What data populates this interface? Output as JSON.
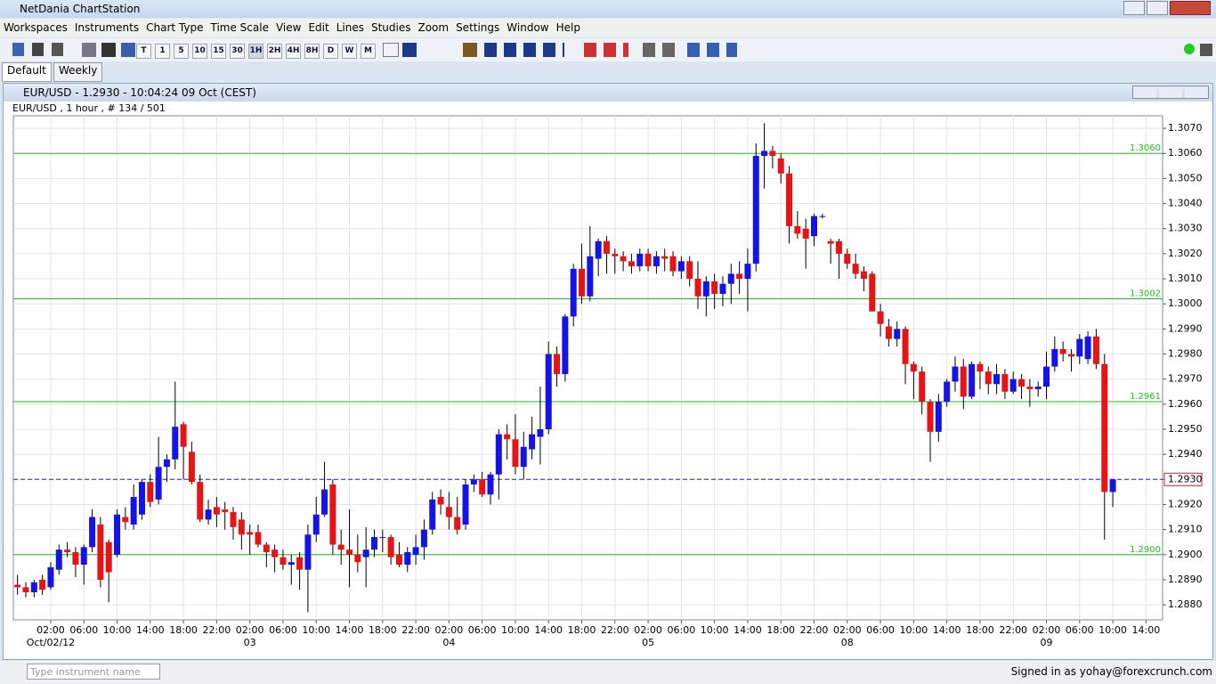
{
  "app": {
    "title": "NetDania ChartStation",
    "menu": [
      "Workspaces",
      "Instruments",
      "Chart Type",
      "Time Scale",
      "View",
      "Edit",
      "Lines",
      "Studies",
      "Zoom",
      "Settings",
      "Window",
      "Help"
    ],
    "timeframes": [
      "T",
      "1",
      "5",
      "10",
      "15",
      "30",
      "1H",
      "2H",
      "4H",
      "8H",
      "D",
      "W",
      "M"
    ],
    "tabs": [
      "Default",
      "Weekly"
    ]
  },
  "window": {
    "title": "EUR/USD - 1.2930 - 10:04:24  09 Oct (CEST)"
  },
  "chart_data": {
    "type": "candlestick",
    "subtitle": "EUR/USD , 1 hour , # 134 / 501",
    "up_color": "#1414e6",
    "down_color": "#e61414",
    "grid": true,
    "open": [
      1.2888,
      1.2887,
      1.2885,
      1.289,
      1.2887,
      1.2894,
      1.2902,
      1.2901,
      1.2896,
      1.2903,
      1.2912,
      1.2905,
      1.29,
      1.2915,
      1.2912,
      1.2916,
      1.2929,
      1.2922,
      1.2935,
      1.2938,
      1.2952,
      1.2941,
      1.2929,
      1.2914,
      1.2919,
      1.2918,
      1.2917,
      1.2914,
      1.2909,
      1.2909,
      1.2904,
      1.2902,
      1.2899,
      1.2896,
      1.2899,
      1.2894,
      1.2908,
      1.2916,
      1.2928,
      1.2904,
      1.2902,
      1.29,
      1.2899,
      1.2902,
      1.2907,
      1.2907,
      1.29,
      1.2896,
      1.29,
      1.2903,
      1.291,
      1.2923,
      1.2919,
      1.2915,
      1.2912,
      1.2928,
      1.293,
      1.2924,
      1.2932,
      1.2948,
      1.2946,
      1.2935,
      1.2942,
      1.2947,
      1.295,
      1.298,
      1.2972,
      1.2995,
      1.3014,
      1.3003,
      1.3018,
      1.3025,
      1.302,
      1.3019,
      1.3017,
      1.3015,
      1.302,
      1.3015,
      1.3019,
      1.3019,
      1.3013,
      1.3017,
      1.301,
      1.3003,
      1.3009,
      1.3004,
      1.3008,
      1.3012,
      1.301,
      1.3016,
      1.3059,
      1.3061,
      1.3058,
      1.3052,
      1.3031,
      1.303,
      1.3027,
      1.3035,
      1.3025,
      1.3025,
      1.302,
      1.3016,
      1.3013,
      1.3012,
      1.2997,
      1.2991,
      1.2986,
      1.299,
      1.2976,
      1.2973,
      1.2961,
      1.2949,
      1.2961,
      1.2969,
      1.2975,
      1.2963,
      1.2976,
      1.2973,
      1.2968,
      1.2972,
      1.2965,
      1.297,
      1.2967,
      1.2966,
      1.2967,
      1.2975,
      1.2982,
      1.298,
      1.2979,
      1.2978,
      1.2987,
      1.2976,
      1.2925
    ],
    "high": [
      1.2892,
      1.2889,
      1.289,
      1.2892,
      1.2897,
      1.2904,
      1.2905,
      1.2903,
      1.2904,
      1.2918,
      1.2915,
      1.2906,
      1.2918,
      1.2919,
      1.2928,
      1.293,
      1.2932,
      1.2947,
      1.294,
      1.2969,
      1.2953,
      1.2945,
      1.2932,
      1.2922,
      1.2923,
      1.2921,
      1.2919,
      1.2917,
      1.2912,
      1.2912,
      1.2905,
      1.2904,
      1.2902,
      1.29,
      1.2901,
      1.2912,
      1.2923,
      1.2937,
      1.293,
      1.291,
      1.2918,
      1.2908,
      1.2911,
      1.291,
      1.291,
      1.2908,
      1.2905,
      1.2903,
      1.2908,
      1.2914,
      1.2925,
      1.2926,
      1.2925,
      1.2923,
      1.293,
      1.2932,
      1.2933,
      1.2933,
      1.295,
      1.2952,
      1.2956,
      1.2949,
      1.2955,
      1.2967,
      1.2985,
      1.2983,
      1.2996,
      1.3016,
      1.3024,
      1.3031,
      1.3026,
      1.3027,
      1.3022,
      1.3021,
      1.302,
      1.3022,
      1.3022,
      1.3021,
      1.3022,
      1.3021,
      1.3019,
      1.3019,
      1.3017,
      1.3011,
      1.3012,
      1.3011,
      1.3016,
      1.3017,
      1.3022,
      1.3064,
      1.3072,
      1.3063,
      1.306,
      1.3055,
      1.3037,
      1.3034,
      1.3036,
      1.3036,
      1.3026,
      1.3026,
      1.3022,
      1.302,
      1.3015,
      1.3013,
      1.3,
      1.2994,
      1.2993,
      1.2991,
      1.2977,
      1.2975,
      1.2962,
      1.2964,
      1.297,
      1.2979,
      1.2978,
      1.2977,
      1.2977,
      1.2975,
      1.2976,
      1.2974,
      1.2973,
      1.2972,
      1.297,
      1.2969,
      1.2981,
      1.2987,
      1.2985,
      1.2982,
      1.2988,
      1.2989,
      1.299,
      1.298,
      1.293
    ],
    "low": [
      1.2884,
      1.2883,
      1.2883,
      1.2884,
      1.2886,
      1.2892,
      1.2899,
      1.2891,
      1.2888,
      1.2901,
      1.2887,
      1.2881,
      1.2899,
      1.291,
      1.291,
      1.2914,
      1.2919,
      1.292,
      1.2929,
      1.2934,
      1.293,
      1.2928,
      1.2913,
      1.2912,
      1.2911,
      1.291,
      1.2906,
      1.2902,
      1.29,
      1.2903,
      1.2895,
      1.2893,
      1.2894,
      1.2888,
      1.2886,
      1.2877,
      1.2905,
      1.2915,
      1.29,
      1.2896,
      1.2887,
      1.2893,
      1.2887,
      1.2899,
      1.2901,
      1.2896,
      1.2895,
      1.2893,
      1.2896,
      1.2898,
      1.2908,
      1.2916,
      1.291,
      1.2908,
      1.291,
      1.2925,
      1.2923,
      1.292,
      1.2922,
      1.2938,
      1.2932,
      1.293,
      1.2938,
      1.2936,
      1.2948,
      1.2967,
      1.2969,
      1.2991,
      1.3,
      1.3001,
      1.3011,
      1.3012,
      1.3012,
      1.3013,
      1.3012,
      1.3013,
      1.3013,
      1.3012,
      1.3013,
      1.3011,
      1.301,
      1.3007,
      1.2998,
      1.2995,
      1.2998,
      1.2999,
      1.3,
      1.3004,
      1.2997,
      1.3013,
      1.3046,
      1.3054,
      1.3048,
      1.3024,
      1.3026,
      1.3014,
      1.3023,
      1.3034,
      1.3016,
      1.301,
      1.3014,
      1.301,
      1.3005,
      1.2997,
      1.2987,
      1.2983,
      1.2983,
      1.2968,
      1.2962,
      1.2956,
      1.2937,
      1.2945,
      1.2959,
      1.2965,
      1.2958,
      1.2962,
      1.2966,
      1.2964,
      1.2964,
      1.2962,
      1.2964,
      1.2962,
      1.2959,
      1.2963,
      1.2962,
      1.2973,
      1.2977,
      1.2973,
      1.2976,
      1.2976,
      1.2974,
      1.2906,
      1.2919
    ],
    "close": [
      1.2887,
      1.2885,
      1.2889,
      1.2886,
      1.2895,
      1.2902,
      1.2901,
      1.2896,
      1.2903,
      1.2915,
      1.289,
      1.2893,
      1.2916,
      1.2913,
      1.2923,
      1.2929,
      1.2921,
      1.2935,
      1.2938,
      1.2951,
      1.2943,
      1.2929,
      1.2914,
      1.2918,
      1.2916,
      1.2917,
      1.2911,
      1.2908,
      1.2908,
      1.2904,
      1.2901,
      1.2899,
      1.2896,
      1.2897,
      1.2894,
      1.2908,
      1.2916,
      1.2926,
      1.2904,
      1.2902,
      1.29,
      1.2897,
      1.2902,
      1.2907,
      1.2907,
      1.2899,
      1.2896,
      1.2901,
      1.2903,
      1.291,
      1.2922,
      1.292,
      1.2915,
      1.291,
      1.2928,
      1.293,
      1.2924,
      1.2932,
      1.2948,
      1.2946,
      1.2935,
      1.2943,
      1.2948,
      1.295,
      1.298,
      1.2972,
      1.2995,
      1.3014,
      1.3003,
      1.3019,
      1.3025,
      1.302,
      1.3019,
      1.3017,
      1.3015,
      1.302,
      1.3015,
      1.3019,
      1.3018,
      1.3013,
      1.3017,
      1.301,
      1.3003,
      1.3009,
      1.3004,
      1.3008,
      1.3012,
      1.301,
      1.3016,
      1.3059,
      1.3061,
      1.3059,
      1.3052,
      1.3031,
      1.3028,
      1.3026,
      1.3035,
      1.3035,
      1.3024,
      1.302,
      1.3016,
      1.3012,
      1.301,
      1.2997,
      1.2992,
      1.2986,
      1.299,
      1.2976,
      1.2973,
      1.2961,
      1.2949,
      1.2961,
      1.2969,
      1.2975,
      1.2963,
      1.2976,
      1.2973,
      1.2968,
      1.2972,
      1.2965,
      1.297,
      1.2967,
      1.2966,
      1.2967,
      1.2975,
      1.2982,
      1.298,
      1.2979,
      1.2986,
      1.2987,
      1.2976,
      1.2925,
      1.293
    ],
    "xlim": [
      -0.5,
      138
    ],
    "ylim": [
      1.2874,
      1.3075
    ],
    "yticks": [
      {
        "value": 1.288,
        "label": "1.2880"
      },
      {
        "value": 1.289,
        "label": "1.2890"
      },
      {
        "value": 1.29,
        "label": "1.2900"
      },
      {
        "value": 1.291,
        "label": "1.2910"
      },
      {
        "value": 1.292,
        "label": "1.2920"
      },
      {
        "value": 1.293,
        "label": "1.2930"
      },
      {
        "value": 1.294,
        "label": "1.2940"
      },
      {
        "value": 1.295,
        "label": "1.2950"
      },
      {
        "value": 1.296,
        "label": "1.2960"
      },
      {
        "value": 1.297,
        "label": "1.2970"
      },
      {
        "value": 1.298,
        "label": "1.2980"
      },
      {
        "value": 1.299,
        "label": "1.2990"
      },
      {
        "value": 1.3,
        "label": "1.3000"
      },
      {
        "value": 1.301,
        "label": "1.3010"
      },
      {
        "value": 1.302,
        "label": "1.3020"
      },
      {
        "value": 1.303,
        "label": "1.3030"
      },
      {
        "value": 1.304,
        "label": "1.3040"
      },
      {
        "value": 1.305,
        "label": "1.3050"
      },
      {
        "value": 1.306,
        "label": "1.3060"
      },
      {
        "value": 1.307,
        "label": "1.3070"
      }
    ],
    "xticks": [
      {
        "value": 4,
        "label": "02:00"
      },
      {
        "value": 8,
        "label": "06:00"
      },
      {
        "value": 12,
        "label": "10:00"
      },
      {
        "value": 16,
        "label": "14:00"
      },
      {
        "value": 20,
        "label": "18:00"
      },
      {
        "value": 24,
        "label": "22:00"
      },
      {
        "value": 28,
        "label": "02:00"
      },
      {
        "value": 32,
        "label": "06:00"
      },
      {
        "value": 36,
        "label": "10:00"
      },
      {
        "value": 40,
        "label": "14:00"
      },
      {
        "value": 44,
        "label": "18:00"
      },
      {
        "value": 48,
        "label": "22:00"
      },
      {
        "value": 52,
        "label": "02:00"
      },
      {
        "value": 56,
        "label": "06:00"
      },
      {
        "value": 60,
        "label": "10:00"
      },
      {
        "value": 64,
        "label": "14:00"
      },
      {
        "value": 68,
        "label": "18:00"
      },
      {
        "value": 72,
        "label": "22:00"
      },
      {
        "value": 76,
        "label": "02:00"
      },
      {
        "value": 80,
        "label": "06:00"
      },
      {
        "value": 84,
        "label": "10:00"
      },
      {
        "value": 88,
        "label": "14:00"
      },
      {
        "value": 92,
        "label": "18:00"
      },
      {
        "value": 96,
        "label": "22:00"
      },
      {
        "value": 100,
        "label": "02:00"
      },
      {
        "value": 104,
        "label": "06:00"
      },
      {
        "value": 108,
        "label": "10:00"
      },
      {
        "value": 112,
        "label": "14:00"
      },
      {
        "value": 116,
        "label": "18:00"
      },
      {
        "value": 120,
        "label": "22:00"
      },
      {
        "value": 124,
        "label": "02:00"
      },
      {
        "value": 128,
        "label": "06:00"
      },
      {
        "value": 132,
        "label": "10:00"
      },
      {
        "value": 136,
        "label": "14:00"
      }
    ],
    "date_labels": [
      {
        "value": 4,
        "label": "Oct/02/12"
      },
      {
        "value": 28,
        "label": "03"
      },
      {
        "value": 52,
        "label": "04"
      },
      {
        "value": 76,
        "label": "05"
      },
      {
        "value": 100,
        "label": "08"
      },
      {
        "value": 124,
        "label": "09"
      }
    ],
    "hlines": [
      {
        "value": 1.306,
        "label": "1.3060"
      },
      {
        "value": 1.3002,
        "label": "1.3002"
      },
      {
        "value": 1.2961,
        "label": "1.2961"
      },
      {
        "value": 1.29,
        "label": "1.2900"
      }
    ],
    "hline_color": "#22bb22",
    "current": {
      "value": 1.293,
      "label": "1.2930"
    },
    "current_color": "#2222cc"
  },
  "footer": {
    "search_placeholder": "Type instrument name",
    "status": "Signed in as yohay@forexcrunch.com"
  }
}
